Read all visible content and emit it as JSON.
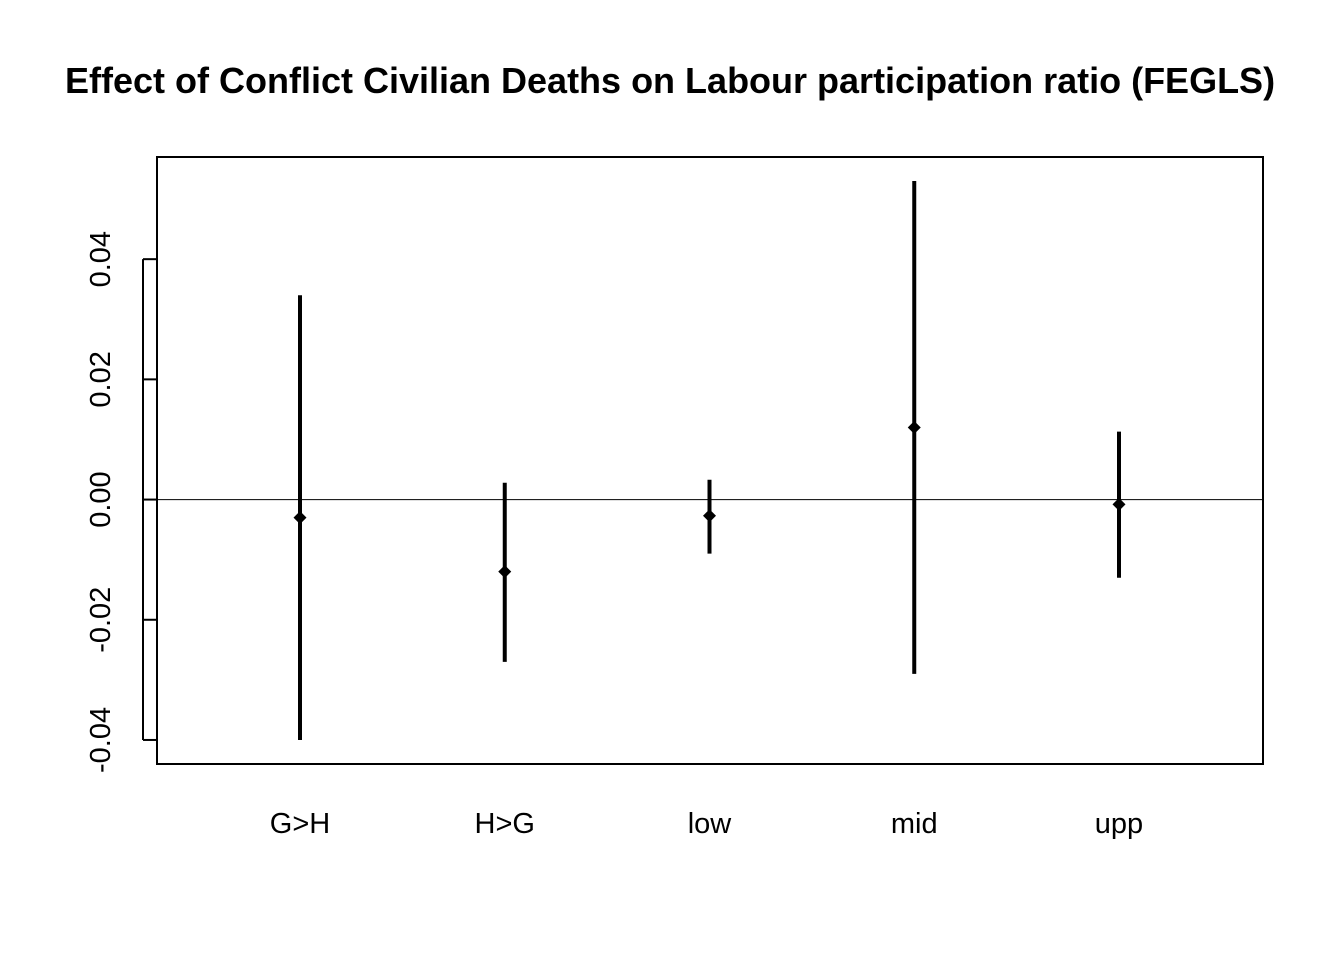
{
  "chart_data": {
    "type": "errorbar",
    "title": "Effect of Conflict Civilian Deaths on Labour participation ratio (FEGLS)",
    "xlabel": "",
    "ylabel": "",
    "categories": [
      "G>H",
      "H>G",
      "low",
      "mid",
      "upp"
    ],
    "series": [
      {
        "estimates": [
          -0.003,
          -0.012,
          -0.0027,
          0.012,
          -0.0008
        ],
        "lower": [
          -0.04,
          -0.027,
          -0.009,
          -0.029,
          -0.013
        ],
        "upper": [
          0.034,
          0.0028,
          0.0033,
          0.053,
          0.0113
        ]
      }
    ],
    "ylim": [
      -0.044,
      0.057
    ],
    "yticks": [
      -0.04,
      -0.02,
      0.0,
      0.02,
      0.04
    ],
    "ytick_labels": [
      "-0.04",
      "-0.02",
      "0.00",
      "0.02",
      "0.04"
    ],
    "reference_line": 0,
    "grid": false,
    "legend": "none",
    "colors": {
      "marks": "#000000",
      "reference_line": "#000000",
      "background": "#ffffff"
    }
  }
}
